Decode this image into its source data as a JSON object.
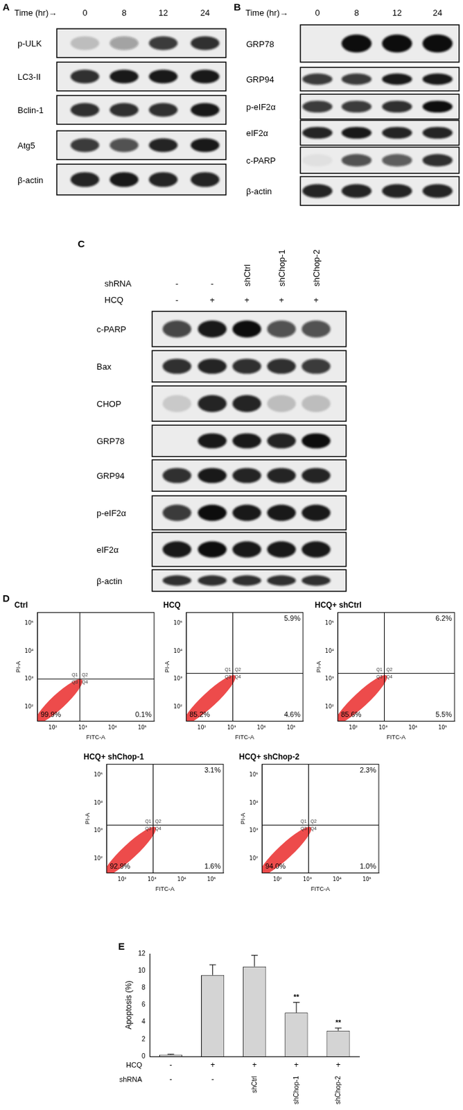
{
  "figure": {
    "blots": [
      {
        "letter": "A",
        "header_rows": [
          {
            "label": "Time (hr)→",
            "lanes": [
              "0",
              "8",
              "12",
              "24"
            ]
          }
        ],
        "rows": [
          {
            "label": "p-ULK",
            "bands": [
              0.2,
              0.35,
              0.8,
              0.85
            ]
          },
          {
            "label": "LC3-II",
            "bands": [
              0.85,
              0.95,
              0.95,
              0.95
            ]
          },
          {
            "label": "Bclin-1",
            "bands": [
              0.85,
              0.85,
              0.85,
              0.95
            ]
          },
          {
            "label": "Atg5",
            "bands": [
              0.8,
              0.7,
              0.9,
              0.95
            ]
          },
          {
            "label": "β-actin",
            "bands": [
              0.9,
              0.95,
              0.9,
              0.9
            ]
          }
        ]
      },
      {
        "letter": "B",
        "header_rows": [
          {
            "label": "Time (hr)→",
            "lanes": [
              "0",
              "8",
              "12",
              "24"
            ]
          }
        ],
        "rows": [
          {
            "label": "GRP78",
            "bands": [
              0,
              1,
              1,
              1
            ]
          },
          {
            "label": "GRP94",
            "bands": [
              0.8,
              0.8,
              0.95,
              0.95
            ]
          },
          {
            "label": "p-eIF2α",
            "bands": [
              0.8,
              0.8,
              0.85,
              1
            ]
          },
          {
            "label": "eIF2α",
            "bands": [
              0.9,
              0.95,
              0.9,
              0.9
            ]
          },
          {
            "label": "c-PARP",
            "bands": [
              0.05,
              0.7,
              0.65,
              0.85
            ]
          },
          {
            "label": "β-actin",
            "bands": [
              0.9,
              0.9,
              0.9,
              0.9
            ]
          }
        ]
      },
      {
        "letter": "C",
        "header_rows": [
          {
            "label": "shRNA",
            "lanes": [
              "-",
              "-",
              "shCtrl",
              "shChop-1",
              "shChop-2"
            ]
          },
          {
            "label": "HCQ",
            "lanes": [
              "-",
              "+",
              "+",
              "+",
              "+"
            ]
          }
        ],
        "rows": [
          {
            "label": "c-PARP",
            "bands": [
              0.75,
              0.95,
              1,
              0.7,
              0.7
            ]
          },
          {
            "label": "Bax",
            "bands": [
              0.85,
              0.9,
              0.85,
              0.85,
              0.8
            ]
          },
          {
            "label": "CHOP",
            "bands": [
              0.15,
              0.9,
              0.9,
              0.2,
              0.2
            ]
          },
          {
            "label": "GRP78",
            "bands": [
              0,
              0.95,
              0.95,
              0.9,
              1
            ]
          },
          {
            "label": "GRP94",
            "bands": [
              0.85,
              0.95,
              0.9,
              0.9,
              0.9
            ]
          },
          {
            "label": "p-eIF2α",
            "bands": [
              0.8,
              1,
              0.95,
              0.95,
              0.95
            ]
          },
          {
            "label": "eIF2α",
            "bands": [
              0.95,
              1,
              0.95,
              0.95,
              0.95
            ]
          },
          {
            "label": "β-actin",
            "bands": [
              0.85,
              0.85,
              0.85,
              0.85,
              0.85
            ]
          }
        ]
      }
    ],
    "flow_panel_letter": "D",
    "bar_panel_letter": "E"
  },
  "chart_data": [
    {
      "type": "scatter",
      "title": "Ctrl",
      "x_label": "FITC-A",
      "y_label": "PI-A",
      "log": true,
      "grid": false,
      "xlim": [
        30,
        250000
      ],
      "ylim": [
        30,
        250000
      ],
      "xticks": [
        {
          "value": 100,
          "label": "10²"
        },
        {
          "value": 1000,
          "label": "10³"
        },
        {
          "value": 10000,
          "label": "10⁴"
        },
        {
          "value": 100000,
          "label": "10⁵"
        }
      ],
      "yticks": [
        {
          "value": 100,
          "label": "10²"
        },
        {
          "value": 1000,
          "label": "10³"
        },
        {
          "value": 10000,
          "label": "10⁴"
        },
        {
          "value": 100000,
          "label": "10⁵"
        }
      ],
      "gates": {
        "x": 800,
        "y": 1000
      },
      "quadrant_names": [
        "Q1",
        "Q2",
        "Q3",
        "Q4"
      ],
      "values": {
        "Q3": 99.9,
        "Q4": 0.1
      },
      "value_labels": {
        "Q3": "99.9%",
        "Q4": "0.1%"
      }
    },
    {
      "type": "scatter",
      "title": "HCQ",
      "x_label": "FITC-A",
      "y_label": "PI-A",
      "log": true,
      "grid": false,
      "xlim": [
        30,
        250000
      ],
      "ylim": [
        30,
        250000
      ],
      "xticks": [
        {
          "value": 100,
          "label": "10²"
        },
        {
          "value": 1000,
          "label": "10³"
        },
        {
          "value": 10000,
          "label": "10⁴"
        },
        {
          "value": 100000,
          "label": "10⁵"
        }
      ],
      "yticks": [
        {
          "value": 100,
          "label": "10²"
        },
        {
          "value": 1000,
          "label": "10³"
        },
        {
          "value": 10000,
          "label": "10⁴"
        },
        {
          "value": 100000,
          "label": "10⁵"
        }
      ],
      "gates": {
        "x": 1100,
        "y": 1600
      },
      "quadrant_names": [
        "Q1",
        "Q2",
        "Q3",
        "Q4"
      ],
      "values": {
        "Q2": 5.9,
        "Q3": 85.2,
        "Q4": 4.6
      },
      "value_labels": {
        "Q2": "5.9%",
        "Q3": "85.2%",
        "Q4": "4.6%"
      }
    },
    {
      "type": "scatter",
      "title": "HCQ+ shCtrl",
      "x_label": "FITC-A",
      "y_label": "PI-A",
      "log": true,
      "grid": false,
      "xlim": [
        30,
        250000
      ],
      "ylim": [
        30,
        250000
      ],
      "xticks": [
        {
          "value": 100,
          "label": "10²"
        },
        {
          "value": 1000,
          "label": "10³"
        },
        {
          "value": 10000,
          "label": "10⁴"
        },
        {
          "value": 100000,
          "label": "10⁵"
        }
      ],
      "yticks": [
        {
          "value": 100,
          "label": "10²"
        },
        {
          "value": 1000,
          "label": "10³"
        },
        {
          "value": 10000,
          "label": "10⁴"
        },
        {
          "value": 100000,
          "label": "10⁵"
        }
      ],
      "gates": {
        "x": 1100,
        "y": 1600
      },
      "quadrant_names": [
        "Q1",
        "Q2",
        "Q3",
        "Q4"
      ],
      "values": {
        "Q2": 6.2,
        "Q3": 85.6,
        "Q4": 5.5
      },
      "value_labels": {
        "Q2": "6.2%",
        "Q3": "85.6%",
        "Q4": "5.5%"
      }
    },
    {
      "type": "scatter",
      "title": "HCQ+ shChop-1",
      "x_label": "FITC-A",
      "y_label": "PI-A",
      "log": true,
      "grid": false,
      "xlim": [
        30,
        250000
      ],
      "ylim": [
        30,
        250000
      ],
      "xticks": [
        {
          "value": 100,
          "label": "10²"
        },
        {
          "value": 1000,
          "label": "10³"
        },
        {
          "value": 10000,
          "label": "10⁴"
        },
        {
          "value": 100000,
          "label": "10⁵"
        }
      ],
      "yticks": [
        {
          "value": 100,
          "label": "10²"
        },
        {
          "value": 1000,
          "label": "10³"
        },
        {
          "value": 10000,
          "label": "10⁴"
        },
        {
          "value": 100000,
          "label": "10⁵"
        }
      ],
      "gates": {
        "x": 1100,
        "y": 1600
      },
      "quadrant_names": [
        "Q1",
        "Q2",
        "Q3",
        "Q4"
      ],
      "values": {
        "Q2": 3.1,
        "Q3": 92.9,
        "Q4": 1.6
      },
      "value_labels": {
        "Q2": "3.1%",
        "Q3": "92.9%",
        "Q4": "1.6%"
      }
    },
    {
      "type": "scatter",
      "title": "HCQ+ shChop-2",
      "x_label": "FITC-A",
      "y_label": "PI-A",
      "log": true,
      "grid": false,
      "xlim": [
        30,
        250000
      ],
      "ylim": [
        30,
        250000
      ],
      "xticks": [
        {
          "value": 100,
          "label": "10²"
        },
        {
          "value": 1000,
          "label": "10³"
        },
        {
          "value": 10000,
          "label": "10⁴"
        },
        {
          "value": 100000,
          "label": "10⁵"
        }
      ],
      "yticks": [
        {
          "value": 100,
          "label": "10²"
        },
        {
          "value": 1000,
          "label": "10³"
        },
        {
          "value": 10000,
          "label": "10⁴"
        },
        {
          "value": 100000,
          "label": "10⁵"
        }
      ],
      "gates": {
        "x": 1100,
        "y": 1600
      },
      "quadrant_names": [
        "Q1",
        "Q2",
        "Q3",
        "Q4"
      ],
      "values": {
        "Q2": 2.3,
        "Q3": 94.0,
        "Q4": 1.0
      },
      "value_labels": {
        "Q2": "2.3%",
        "Q3": "94.0%",
        "Q4": "1.0%"
      }
    },
    {
      "type": "bar",
      "y_label": "Apoptosis (%)",
      "grid": false,
      "color": "#d4d4d4",
      "categories": [
        null,
        null,
        null,
        null,
        null
      ],
      "values": [
        0.2,
        9.5,
        10.5,
        5.1,
        3.0
      ],
      "errors": [
        0.05,
        1.2,
        1.3,
        1.2,
        0.3
      ],
      "significance": [
        null,
        null,
        null,
        "**",
        "**"
      ],
      "x_label_rows": [
        {
          "label": "HCQ",
          "values": [
            "-",
            "+",
            "+",
            "+",
            "+"
          ]
        },
        {
          "label": "shRNA",
          "values": [
            "-",
            "-",
            "shCtrl",
            "shChop-1",
            "shChop-2"
          ]
        }
      ],
      "ylim": [
        0,
        12
      ],
      "yticks": [
        0,
        2,
        4,
        6,
        8,
        10,
        12
      ]
    }
  ]
}
